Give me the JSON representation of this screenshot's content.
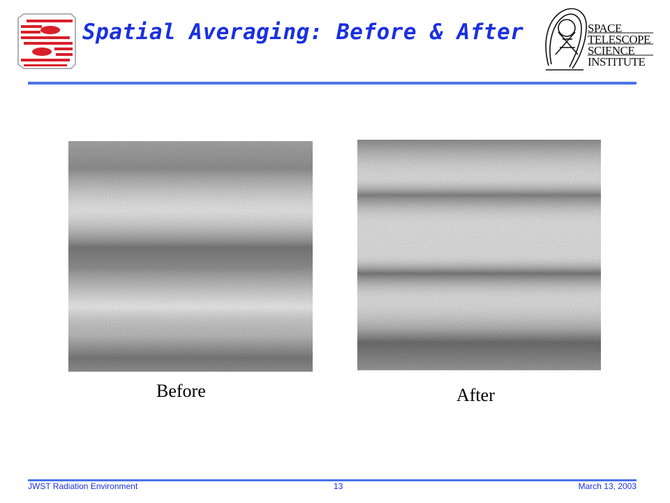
{
  "slide": {
    "title": "Spatial Averaging: Before & After",
    "institute_logo_text": [
      "SPACE",
      "TELESCOPE",
      "SCIENCE",
      "INSTITUTE"
    ],
    "colors": {
      "title": "#1a30e0",
      "rule": "#4a72e8",
      "logo_red": "#d8202a"
    }
  },
  "panels": [
    {
      "caption": "Before",
      "image": "noisy-detector-frame-broad-banding"
    },
    {
      "caption": "After",
      "image": "noisy-detector-frame-narrow-banding"
    }
  ],
  "footer": {
    "left": "JWST Radiation Environment",
    "page": "13",
    "date": "March 13, 2003"
  }
}
